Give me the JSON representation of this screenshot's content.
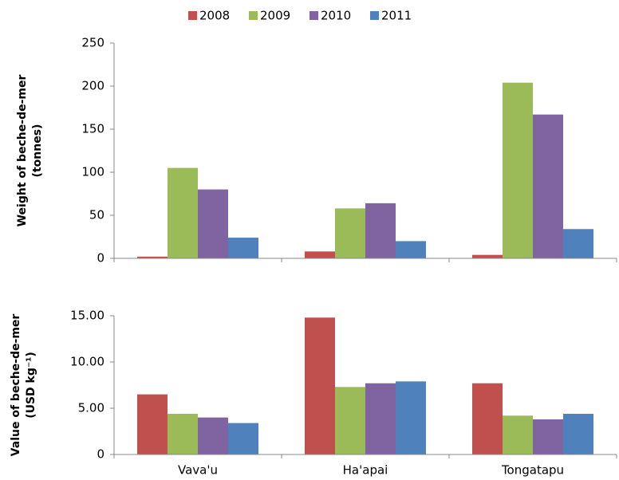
{
  "chart_data": [
    {
      "type": "bar",
      "ylabel": [
        "Weight of beche-de-mer",
        "(tonnes)"
      ],
      "series": [
        {
          "name": "2008",
          "color": "#c0504d",
          "values": [
            2,
            8,
            4
          ]
        },
        {
          "name": "2009",
          "color": "#9bbb59",
          "values": [
            105,
            58,
            204
          ]
        },
        {
          "name": "2010",
          "color": "#8064a2",
          "values": [
            80,
            64,
            167
          ]
        },
        {
          "name": "2011",
          "color": "#4f81bd",
          "values": [
            24,
            20,
            34
          ]
        }
      ],
      "ylim": [
        0,
        250
      ],
      "yticks": [
        0,
        50,
        100,
        150,
        200,
        250
      ],
      "legend": "top",
      "grid": false
    },
    {
      "type": "bar",
      "ylabel": [
        "Value of beche-de-mer",
        "(USD kg⁻¹)"
      ],
      "categories": [
        "Vava'u",
        "Ha'apai",
        "Tongatapu"
      ],
      "series": [
        {
          "color": "#c0504d",
          "values": [
            6.5,
            14.8,
            7.7
          ]
        },
        {
          "color": "#9bbb59",
          "values": [
            4.4,
            7.3,
            4.2
          ]
        },
        {
          "color": "#8064a2",
          "values": [
            4.0,
            7.7,
            3.8
          ]
        },
        {
          "color": "#4f81bd",
          "values": [
            3.4,
            7.9,
            4.4
          ]
        }
      ],
      "ylim": [
        0,
        15
      ],
      "yticks": [
        0,
        {
          "value": 5,
          "label": "5.00"
        },
        {
          "value": 10,
          "label": "10.00"
        },
        {
          "value": 15,
          "label": "15.00"
        }
      ],
      "grid": false
    }
  ]
}
